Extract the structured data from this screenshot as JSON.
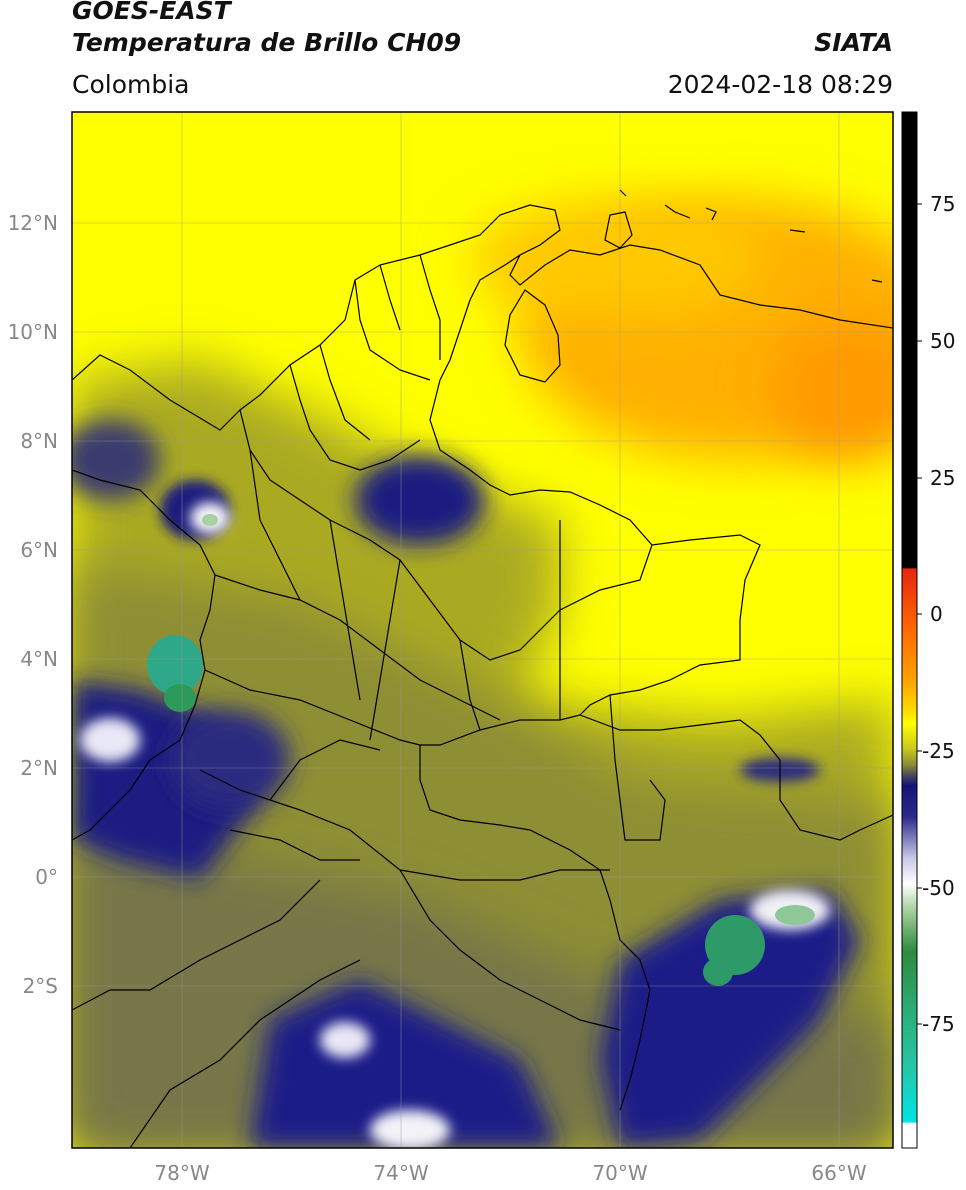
{
  "header": {
    "line1": "GOES-EAST",
    "line2": "Temperatura de Brillo CH09",
    "source": "SIATA",
    "region": "Colombia",
    "datetime": "2024-02-18 08:29"
  },
  "map": {
    "lon_range": [
      -80,
      -65
    ],
    "lat_range": [
      -5.2,
      13.9
    ],
    "lon_ticks": [
      "78°W",
      "74°W",
      "70°W",
      "66°W"
    ],
    "lat_ticks": [
      "12°N",
      "10°N",
      "8°N",
      "6°N",
      "4°N",
      "2°N",
      "0°",
      "2°S"
    ],
    "gridlines": true
  },
  "colorbar": {
    "ticks": [
      "75",
      "50",
      "25",
      "0",
      "-25",
      "-50",
      "-75"
    ],
    "colors": {
      "black": "#000000",
      "red": "#e8250f",
      "orange": "#ffa500",
      "yellow": "#ffff00",
      "olive": "#9e9e2a",
      "navy": "#1a1a7a",
      "white": "#ffffff",
      "green": "#2e8b3e",
      "teal": "#26c6a6",
      "cyan": "#00e5e5"
    }
  }
}
